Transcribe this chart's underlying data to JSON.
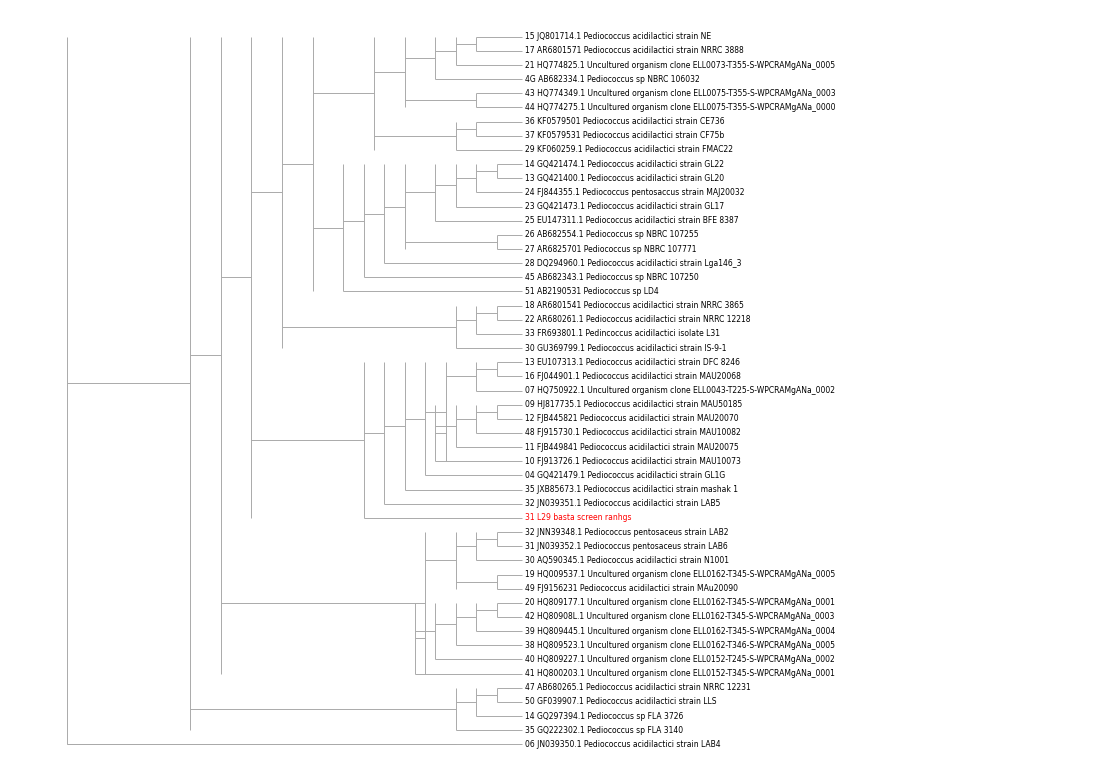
{
  "background_color": "#ffffff",
  "line_color": "#aaaaaa",
  "label_color": "#000000",
  "highlight_color": "#ff0000",
  "fontsize": 5.5,
  "highlight_idx": 34,
  "labels": [
    "15 JQ801714.1 Pediococcus acidilactici strain NE",
    "17 AR6801571 Pediococcus acidilactici strain NRRC 3888",
    "21 HQ774825.1 Uncultured organism clone ELL0073-T355-S-WPCRAMgANa_0005",
    "4G AB682334.1 Pediococcus sp NBRC 106032",
    "43 HQ774349.1 Uncultured organism clone ELL0075-T355-S-WPCRAMgANa_0003",
    "44 HQ774275.1 Uncultured organism clone ELL0075-T355-S-WPCRAMgANa_0000",
    "36 KF0579501 Pediococcus acidilactici strain CE736",
    "37 KF0579531 Pediococcus acidilactici strain CF75b",
    "29 KF060259.1 Pediococcus acidilactici strain FMAC22",
    "14 GQ421474.1 Pediococcus acidilactici strain GL22",
    "13 GQ421400.1 Pediococcus acidilactici strain GL20",
    "24 FJ844355.1 Pediococcus pentosaccus strain MAJ20032",
    "23 GQ421473.1 Pediococcus acidilactici strain GL17",
    "25 EU147311.1 Pediococcus acidilactici strain BFE 8387",
    "26 AB682554.1 Pediococcus sp NBRC 107255",
    "27 AR6825701 Pediococcus sp NBRC 107771",
    "28 DQ294960.1 Pediococcus acidilactici strain Lga146_3",
    "45 AB682343.1 Pediococcus sp NBRC 107250",
    "51 AB2190531 Pediococcus sp LD4",
    "18 AR6801541 Pediococcus acidilactici strain NRRC 3865",
    "22 AR680261.1 Pediococcus acidilactici strain NRRC 12218",
    "33 FR693801.1 Pedincoccus acidilactici isolate L31",
    "30 GU369799.1 Pediococcus acidilactici strain IS-9-1",
    "13 EU107313.1 Pediococcus acidilactici strain DFC 8246",
    "16 FJ044901.1 Pediococcus acidilactici strain MAU20068",
    "07 HQ750922.1 Uncultured organism clone ELL0043-T225-S-WPCRAMgANa_0002",
    "09 HJ817735.1 Pediococcus acidilactici strain MAU50185",
    "12 FJB445821 Pediococcus acidilactici strain MAU20070",
    "48 FJ915730.1 Pediococcus acidilactici strain MAU10082",
    "11 FJB449841 Pediococcus acidilactici strain MAU20075",
    "10 FJ913726.1 Pediococcus acidilactici strain MAU10073",
    "04 GQ421479.1 Pediococcus acidilactici strain GL1G",
    "35 JXB85673.1 Pediococcus acidilactici strain mashak 1",
    "32 JN039351.1 Pediococcus acidilactici strain LAB5",
    "31 L29 basta screen ranhgs",
    "32 JNN39348.1 Pediococcus pentosaceus strain LAB2",
    "31 JN039352.1 Pediococcus pentosaceus strain LAB6",
    "30 AQ590345.1 Pediococcus acidilactici strain N1001",
    "19 HQ009537.1 Uncultured organism clone ELL0162-T345-S-WPCRAMgANa_0005",
    "49 FJ9156231 Pediococcus acidilactici strain MAu20090",
    "20 HQ809177.1 Uncultured organism clone ELL0162-T345-S-WPCRAMgANa_0001",
    "42 HQ80908L.1 Uncultured organism clone ELL0162-T345-S-WPCRAMgANa_0003",
    "39 HQ809445.1 Uncultured organism clone ELL0162-T345-S-WPCRAMgANa_0004",
    "38 HQ809523.1 Uncultured organism clone ELL0162-T346-S-WPCRAMgANa_0005",
    "40 HQ809227.1 Uncultured organism clone ELL0152-T245-S-WPCRAMgANa_0002",
    "41 HQ800203.1 Uncultured organism clone ELL0152-T345-S-WPCRAMgANa_0001",
    "47 AB680265.1 Pediococcus acidilactici strain NRRC 12231",
    "50 GF039907.1 Pediococcus acidilactici strain LLS",
    "14 GQ297394.1 Pediococcus sp FLA 3726",
    "35 GQ222302.1 Pediococcus sp FLA 3140",
    "06 JN039350.1 Pediococcus acidilactici strain LAB4"
  ]
}
